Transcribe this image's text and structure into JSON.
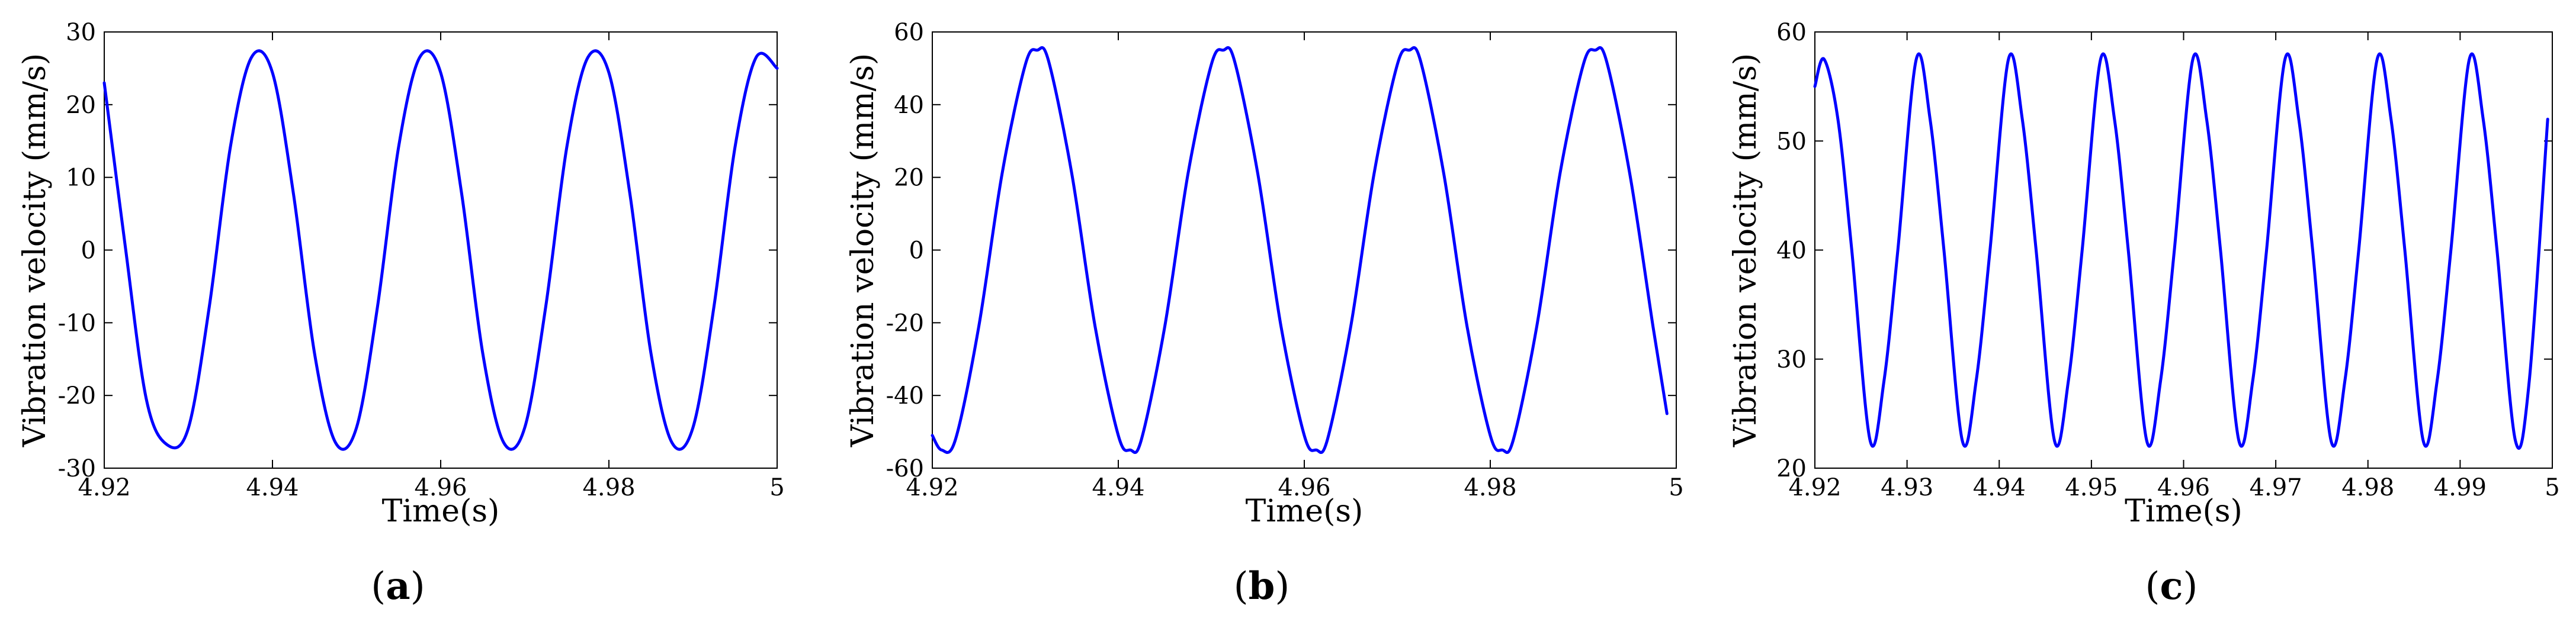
{
  "figure": {
    "panels": [
      {
        "prefix": "(",
        "letter": "a",
        "suffix": ")"
      },
      {
        "prefix": "(",
        "letter": "b",
        "suffix": ")"
      },
      {
        "prefix": "(",
        "letter": "c",
        "suffix": ")"
      }
    ],
    "line_color": "#0000ff"
  },
  "chart_data": [
    {
      "type": "line",
      "xlabel": "Time(s)",
      "ylabel": "Vibration velocity (mm/s)",
      "xlim": [
        4.92,
        5.0
      ],
      "ylim": [
        -30,
        30
      ],
      "xticks": [
        4.92,
        4.94,
        4.96,
        4.98,
        5.0
      ],
      "xtick_labels": [
        "4.92",
        "4.94",
        "4.96",
        "4.98",
        "5"
      ],
      "yticks": [
        -30,
        -20,
        -10,
        0,
        10,
        20,
        30
      ],
      "ytick_labels": [
        "-30",
        "-20",
        "-10",
        "0",
        "10",
        "20",
        "30"
      ],
      "grid": false,
      "series": [
        {
          "color": "#0000ff",
          "x": [
            4.92,
            4.9225,
            4.925,
            4.9275,
            4.93,
            4.9325,
            4.935,
            4.9375,
            4.94,
            4.9425,
            4.945,
            4.9475,
            4.95,
            4.9525,
            4.955,
            4.9575,
            4.96,
            4.9625,
            4.965,
            4.9675,
            4.97,
            4.9725,
            4.975,
            4.9775,
            4.98,
            4.9825,
            4.985,
            4.9875,
            4.99,
            4.9925,
            4.995,
            4.9975,
            5.0
          ],
          "y": [
            23,
            0.5,
            -20.5,
            -26.8,
            -24.5,
            -7.7,
            14.2,
            26.5,
            24.4,
            7.7,
            -14.2,
            -26.5,
            -24.4,
            -7.7,
            14.2,
            26.5,
            24.4,
            7.7,
            -14.2,
            -26.5,
            -24.4,
            -7.7,
            14.2,
            26.5,
            24.4,
            7.7,
            -14.2,
            -26.5,
            -24.4,
            -7.7,
            14.2,
            26.5,
            25
          ]
        }
      ]
    },
    {
      "type": "line",
      "xlabel": "Time(s)",
      "ylabel": "Vibration velocity (mm/s)",
      "xlim": [
        4.92,
        5.0
      ],
      "ylim": [
        -60,
        60
      ],
      "xticks": [
        4.92,
        4.94,
        4.96,
        4.98,
        5.0
      ],
      "xtick_labels": [
        "4.92",
        "4.94",
        "4.96",
        "4.98",
        "5"
      ],
      "yticks": [
        -60,
        -40,
        -20,
        0,
        20,
        40,
        60
      ],
      "ytick_labels": [
        "-60",
        "-40",
        "-20",
        "0",
        "20",
        "40",
        "60"
      ],
      "grid": false,
      "series": [
        {
          "color": "#0000ff",
          "x": [
            4.92,
            4.921,
            4.9225,
            4.925,
            4.9275,
            4.93,
            4.9313,
            4.9325,
            4.935,
            4.9375,
            4.94,
            4.9413,
            4.9425,
            4.945,
            4.9475,
            4.95,
            4.9513,
            4.9525,
            4.955,
            4.9575,
            4.96,
            4.9613,
            4.9625,
            4.965,
            4.9675,
            4.97,
            4.9713,
            4.9725,
            4.975,
            4.9775,
            4.98,
            4.9813,
            4.9825,
            4.985,
            4.9875,
            4.99,
            4.9913,
            4.9925,
            4.995,
            4.9975,
            4.999
          ],
          "y": [
            -51,
            -55,
            -52,
            -21,
            21,
            51,
            55,
            52,
            21,
            -21,
            -51,
            -55,
            -52,
            -21,
            21,
            51,
            55,
            52,
            21,
            -21,
            -51,
            -55,
            -52,
            -21,
            21,
            51,
            55,
            52,
            21,
            -21,
            -51,
            -55,
            -52,
            -21,
            21,
            51,
            55,
            52,
            21,
            -21,
            -45
          ]
        }
      ]
    },
    {
      "type": "line",
      "xlabel": "Time(s)",
      "ylabel": "Vibration velocity (mm/s)",
      "xlim": [
        4.92,
        5.0
      ],
      "ylim": [
        20,
        60
      ],
      "xticks": [
        4.92,
        4.93,
        4.94,
        4.95,
        4.96,
        4.97,
        4.98,
        4.99,
        5.0
      ],
      "xtick_labels": [
        "4.92",
        "4.93",
        "4.94",
        "4.95",
        "4.96",
        "4.97",
        "4.98",
        "4.99",
        "5"
      ],
      "yticks": [
        20,
        30,
        40,
        50,
        60
      ],
      "ytick_labels": [
        "20",
        "30",
        "40",
        "50",
        "60"
      ],
      "grid": false,
      "series": [
        {
          "color": "#0000ff",
          "x": [
            4.92,
            4.921,
            4.9225,
            4.924,
            4.926,
            4.9275,
            4.929,
            4.931,
            4.9325,
            4.934,
            4.936,
            4.9375,
            4.939,
            4.941,
            4.9425,
            4.944,
            4.946,
            4.9475,
            4.949,
            4.951,
            4.9525,
            4.954,
            4.956,
            4.9575,
            4.959,
            4.961,
            4.9625,
            4.964,
            4.966,
            4.9675,
            4.969,
            4.971,
            4.9725,
            4.974,
            4.976,
            4.9775,
            4.979,
            4.981,
            4.9825,
            4.984,
            4.986,
            4.9875,
            4.989,
            4.991,
            4.9925,
            4.994,
            4.996,
            4.9975,
            4.9995
          ],
          "y": [
            55,
            57.5,
            52,
            40,
            22.5,
            28,
            40,
            57.5,
            52,
            40,
            22.5,
            28,
            40,
            57.5,
            52,
            40,
            22.5,
            28,
            40,
            57.5,
            52,
            40,
            22.5,
            28,
            40,
            57.5,
            52,
            40,
            22.5,
            28,
            40,
            57.5,
            52,
            40,
            22.5,
            28,
            40,
            57.5,
            52,
            40,
            22.5,
            28,
            40,
            57.5,
            52,
            40,
            22.5,
            28,
            52
          ]
        }
      ]
    }
  ]
}
